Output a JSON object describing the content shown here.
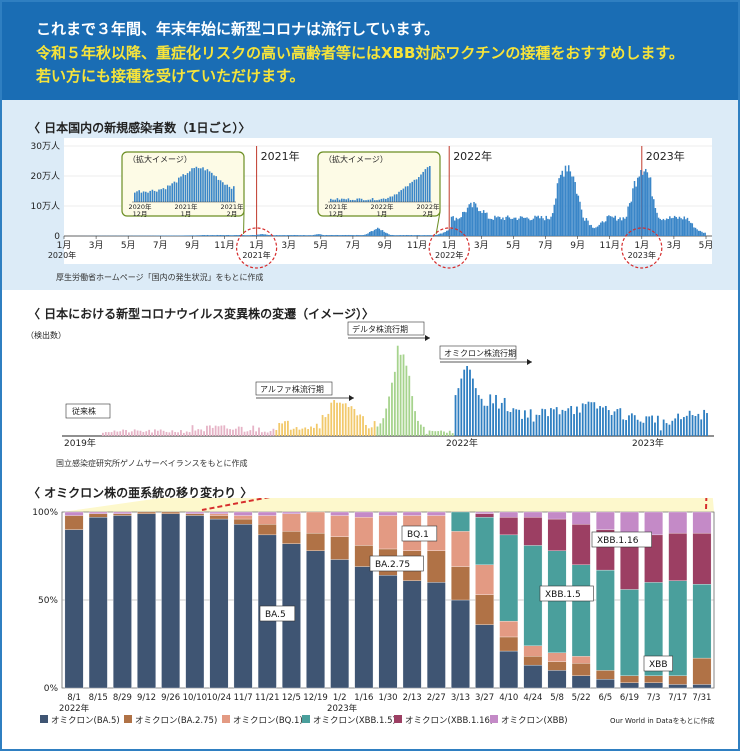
{
  "banner": {
    "line1": "これまで３年間、年末年始に新型コロナは流行しています。",
    "line2": "令和５年秋以降、重症化リスクの高い高齢者等にはXBB対応ワクチンの接種をおすすめします。",
    "line3": "若い方にも接種を受けていただけます。"
  },
  "colors": {
    "banner_bg": "#1a6db4",
    "banner_highlight": "#f7e43a",
    "infection_bar": "#3a86c8",
    "ba5": "#3f5573",
    "ba275": "#b07246",
    "bq1": "#e39a83",
    "xbb15": "#4a9f9c",
    "xbb116": "#9c3f63",
    "xbb": "#c48ac7"
  },
  "chart_data": [
    {
      "id": "infections",
      "type": "area",
      "title": "〈 日本国内の新規感染者数（1日ごと）〉",
      "ylabel": "",
      "ylim": [
        0,
        300000
      ],
      "ytick_labels": [
        "30万人",
        "20万人",
        "10万人",
        "0"
      ],
      "ytick_values": [
        300000,
        200000,
        100000,
        0
      ],
      "xtick_labels": [
        "1月",
        "3月",
        "5月",
        "7月",
        "9月",
        "11月",
        "1月",
        "3月",
        "5月",
        "7月",
        "9月",
        "11月",
        "1月",
        "3月",
        "5月",
        "7月",
        "9月",
        "11月",
        "1月",
        "3月",
        "5月"
      ],
      "year_labels": [
        "2020年",
        "2021年",
        "2022年",
        "2023年"
      ],
      "marker_labels": [
        "2021年",
        "2022年",
        "2023年"
      ],
      "inset_title": "（拡大イメージ）",
      "insets": [
        {
          "title": "（拡大イメージ）",
          "ticks": [
            "2020年\n12月",
            "2021年\n1月",
            "2021年\n2月"
          ]
        },
        {
          "title": "（拡大イメージ）",
          "ticks": [
            "2021年\n12月",
            "2022年\n1月",
            "2022年\n2月"
          ]
        }
      ],
      "key_points": [
        {
          "date": "2020-04",
          "value": 700
        },
        {
          "date": "2020-08",
          "value": 1500
        },
        {
          "date": "2021-01",
          "value": 7800
        },
        {
          "date": "2021-05",
          "value": 7000
        },
        {
          "date": "2021-08",
          "value": 25000
        },
        {
          "date": "2022-02",
          "value": 104000
        },
        {
          "date": "2022-08",
          "value": 260000
        },
        {
          "date": "2022-10",
          "value": 30000
        },
        {
          "date": "2023-01",
          "value": 245000
        },
        {
          "date": "2023-05",
          "value": 10000
        }
      ],
      "source": "厚生労働省ホームページ「国内の発生状況」をもとに作成"
    },
    {
      "id": "variants",
      "type": "bar",
      "title": "〈 日本における新型コロナウイルス変異株の変遷（イメージ）〉",
      "ylabel": "（検出数）",
      "period_labels": [
        "デルタ株流行期",
        "オミクロン株流行期",
        "アルファ株流行期"
      ],
      "strain_labels": [
        "従来株"
      ],
      "year_labels": [
        "2019年",
        "2022年",
        "2023年"
      ],
      "source": "国立感染症研究所ゲノムサーベイランスをもとに作成"
    },
    {
      "id": "omicron",
      "type": "bar",
      "stacked": true,
      "title": "〈 オミクロン株の亜系統の移り変わり 〉",
      "ylim": [
        0,
        100
      ],
      "ytick_labels": [
        "100%",
        "50%",
        "0%"
      ],
      "categories": [
        "8/1",
        "8/15",
        "8/29",
        "9/12",
        "9/26",
        "10/10",
        "10/24",
        "11/7",
        "11/21",
        "12/5",
        "12/19",
        "1/2",
        "1/16",
        "1/30",
        "2/13",
        "2/27",
        "3/13",
        "3/27",
        "4/10",
        "4/24",
        "5/8",
        "5/22",
        "6/5",
        "6/19",
        "7/3",
        "7/17",
        "7/31"
      ],
      "year_labels": [
        "2022年",
        "2023年"
      ],
      "series": [
        {
          "name": "オミクロン(BA.5)",
          "color": "#3f5573",
          "values": [
            90,
            97,
            98,
            99,
            99,
            98,
            96,
            93,
            87,
            82,
            78,
            73,
            69,
            64,
            61,
            60,
            50,
            36,
            21,
            13,
            10,
            7,
            5,
            3,
            3,
            2,
            2
          ]
        },
        {
          "name": "オミクロン(BA.2.75)",
          "color": "#b07246",
          "values": [
            8,
            2,
            1,
            1,
            1,
            1,
            2,
            3,
            6,
            7,
            10,
            13,
            12,
            15,
            17,
            18,
            19,
            17,
            8,
            5,
            5,
            7,
            5,
            4,
            4,
            5,
            15
          ]
        },
        {
          "name": "オミクロン(BQ.1)",
          "color": "#e39a83",
          "values": [
            0,
            0,
            0,
            0,
            0,
            0,
            1,
            2,
            5,
            10,
            12,
            12,
            16,
            19,
            20,
            20,
            20,
            17,
            9,
            6,
            5,
            4,
            0,
            0,
            0,
            0,
            0
          ]
        },
        {
          "name": "オミクロン(XBB.1.5)",
          "color": "#4a9f9c",
          "values": [
            0,
            0,
            0,
            0,
            0,
            0,
            0,
            0,
            0,
            0,
            0,
            0,
            0,
            0,
            0,
            0,
            11,
            27,
            49,
            57,
            58,
            52,
            57,
            49,
            53,
            54,
            42
          ]
        },
        {
          "name": "オミクロン(XBB.1.16)",
          "color": "#9c3f63",
          "values": [
            0,
            0,
            0,
            0,
            0,
            0,
            0,
            0,
            0,
            0,
            0,
            0,
            0,
            0,
            0,
            0,
            0,
            2,
            10,
            16,
            18,
            23,
            23,
            28,
            27,
            27,
            29
          ]
        },
        {
          "name": "オミクロン(XBB)",
          "color": "#c48ac7",
          "values": [
            2,
            1,
            1,
            0,
            0,
            1,
            1,
            2,
            2,
            1,
            0,
            2,
            3,
            2,
            2,
            2,
            0,
            1,
            3,
            3,
            4,
            7,
            10,
            16,
            13,
            12,
            12
          ]
        }
      ],
      "annotations": [
        "BA.5",
        "BA.2.75",
        "BQ.1",
        "XBB.1.5",
        "XBB.1.16",
        "XBB"
      ],
      "source": "Our World in Dataをもとに作成"
    }
  ]
}
